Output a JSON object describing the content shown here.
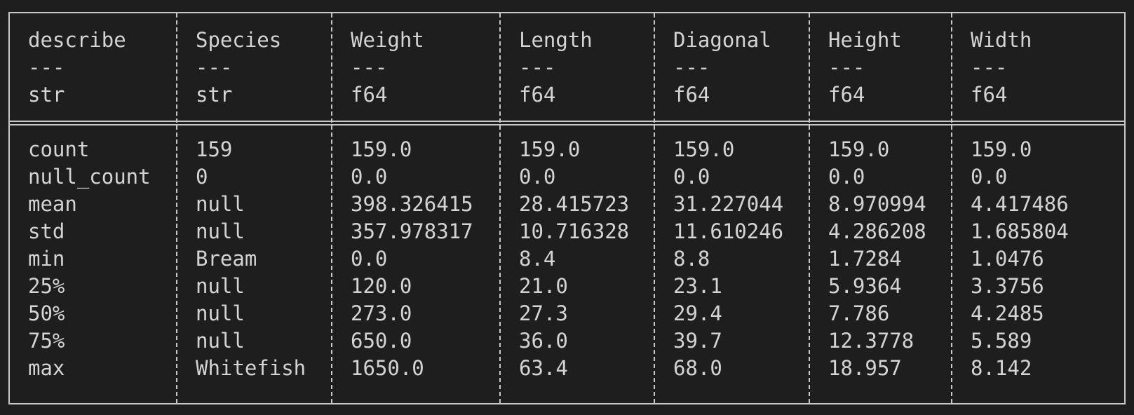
{
  "table": {
    "columns": [
      {
        "name": "describe",
        "sep": "---",
        "dtype": "str"
      },
      {
        "name": "Species",
        "sep": "---",
        "dtype": "str"
      },
      {
        "name": "Weight",
        "sep": "---",
        "dtype": "f64"
      },
      {
        "name": "Length",
        "sep": "---",
        "dtype": "f64"
      },
      {
        "name": "Diagonal",
        "sep": "---",
        "dtype": "f64"
      },
      {
        "name": "Height",
        "sep": "---",
        "dtype": "f64"
      },
      {
        "name": "Width",
        "sep": "---",
        "dtype": "f64"
      }
    ],
    "rows": [
      [
        "count",
        "159",
        "159.0",
        "159.0",
        "159.0",
        "159.0",
        "159.0"
      ],
      [
        "null_count",
        "0",
        "0.0",
        "0.0",
        "0.0",
        "0.0",
        "0.0"
      ],
      [
        "mean",
        "null",
        "398.326415",
        "28.415723",
        "31.227044",
        "8.970994",
        "4.417486"
      ],
      [
        "std",
        "null",
        "357.978317",
        "10.716328",
        "11.610246",
        "4.286208",
        "1.685804"
      ],
      [
        "min",
        "Bream",
        "0.0",
        "8.4",
        "8.8",
        "1.7284",
        "1.0476"
      ],
      [
        "25%",
        "null",
        "120.0",
        "21.0",
        "23.1",
        "5.9364",
        "3.3756"
      ],
      [
        "50%",
        "null",
        "273.0",
        "27.3",
        "29.4",
        "7.786",
        "4.2485"
      ],
      [
        "75%",
        "null",
        "650.0",
        "36.0",
        "39.7",
        "12.3778",
        "5.589"
      ],
      [
        "max",
        "Whitefish",
        "1650.0",
        "63.4",
        "68.0",
        "18.957",
        "8.142"
      ]
    ]
  }
}
